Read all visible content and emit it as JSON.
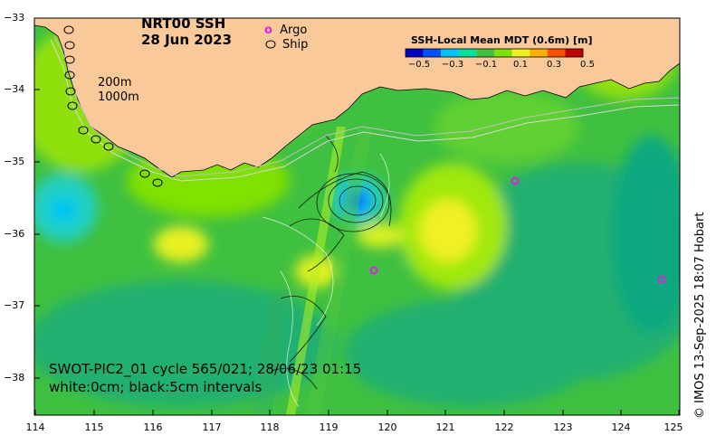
{
  "title": {
    "line1": "NRT00 SSH",
    "line2": "28 Jun 2023"
  },
  "legend": {
    "argo": {
      "symbol": "o",
      "label": "Argo",
      "color": "#e020e0"
    },
    "ship": {
      "label": "Ship"
    }
  },
  "depth_labels": [
    "200m",
    "1000m"
  ],
  "colorbar": {
    "title": "SSH-Local Mean MDT (0.6m) [m]",
    "ticks": [
      "−0.5",
      "−0.3",
      "−0.1",
      "0.1",
      "0.3",
      "0.5"
    ],
    "colors": [
      "#0000c0",
      "#0050ff",
      "#00c0ff",
      "#00e0a0",
      "#40c040",
      "#80e000",
      "#f0f020",
      "#ffb000",
      "#ff5000",
      "#c00000"
    ]
  },
  "caption": {
    "line1": "SWOT-PIC2_01 cycle 565/021; 28/06/23 01:15",
    "line2": "white:0cm; black:5cm intervals"
  },
  "credit": "© IMOS 13-Sep-2025 18:07 Hobart",
  "axes": {
    "lat_ticks": [
      "−33",
      "−34",
      "−35",
      "−36",
      "−37",
      "−38"
    ],
    "lon_ticks": [
      "114",
      "115",
      "116",
      "117",
      "118",
      "119",
      "120",
      "121",
      "122",
      "123",
      "124",
      "125"
    ]
  },
  "colors": {
    "land": "#fac99a",
    "ocean_base": "#40c040"
  }
}
